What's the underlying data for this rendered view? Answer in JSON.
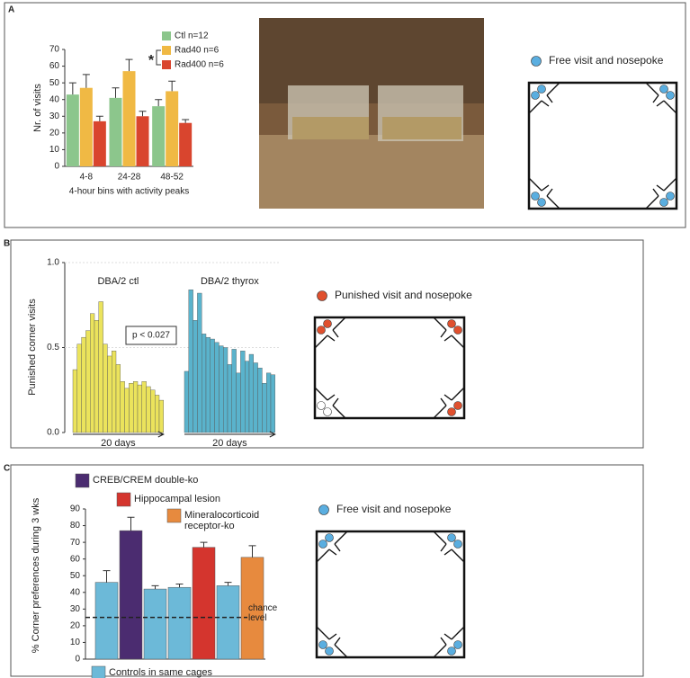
{
  "panels": [
    "A",
    "B",
    "C"
  ],
  "chart_data": [
    {
      "type": "bar",
      "ylabel": "Nr. of visits",
      "xlabel": "4-hour bins with activity peaks",
      "categories": [
        "4-8",
        "24-28",
        "48-52"
      ],
      "series": [
        {
          "name": "Ctl n=12",
          "color": "#8cc68c",
          "values": [
            43,
            41,
            36
          ],
          "errors": [
            7,
            6,
            4
          ]
        },
        {
          "name": "Rad40 n=6",
          "color": "#f0b944",
          "values": [
            47,
            57,
            45
          ],
          "errors": [
            8,
            7,
            6
          ]
        },
        {
          "name": "Rad400 n=6",
          "color": "#d9452e",
          "values": [
            27,
            30,
            26
          ],
          "errors": [
            3,
            3,
            2
          ]
        }
      ],
      "annotation": "*",
      "ylim": [
        0,
        70
      ],
      "yticks": [
        0,
        10,
        20,
        30,
        40,
        50,
        60,
        70
      ]
    },
    {
      "type": "histogram",
      "ylabel": "Punished corner visits",
      "annotation": "p < 0.027",
      "series": [
        {
          "name": "DBA/2 ctl",
          "color": "#ebe35c",
          "xlabel": "20 days",
          "values": [
            0.37,
            0.52,
            0.56,
            0.6,
            0.7,
            0.66,
            0.77,
            0.52,
            0.45,
            0.48,
            0.4,
            0.3,
            0.26,
            0.29,
            0.3,
            0.28,
            0.3,
            0.27,
            0.25,
            0.22,
            0.19
          ]
        },
        {
          "name": "DBA/2 thyrox",
          "color": "#5ab3cc",
          "xlabel": "20 days",
          "values": [
            0.36,
            0.84,
            0.66,
            0.82,
            0.58,
            0.56,
            0.55,
            0.53,
            0.51,
            0.5,
            0.4,
            0.49,
            0.35,
            0.48,
            0.42,
            0.46,
            0.41,
            0.38,
            0.29,
            0.35,
            0.34
          ]
        }
      ],
      "ylim": [
        0,
        1
      ],
      "yticks": [
        {
          "value": 0,
          "label": "0.0"
        },
        0.5,
        {
          "value": 1,
          "label": "1.0"
        }
      ],
      "grid": true
    },
    {
      "type": "bar",
      "ylabel": "% Corner preferences during 3 wks",
      "values": [
        46,
        77,
        42,
        43,
        67,
        44,
        61
      ],
      "errors": [
        7,
        8,
        2,
        2,
        3,
        2,
        7
      ],
      "colors": [
        "#6cb9d8",
        "#4b2c70",
        "#6cb9d8",
        "#6cb9d8",
        "#d4352e",
        "#6cb9d8",
        "#e78a3e"
      ],
      "legend": [
        {
          "label": "CREB/CREM double-ko",
          "color": "#4b2c70"
        },
        {
          "label": "Hippocampal lesion",
          "color": "#d4352e"
        },
        {
          "label": "Mineralocorticoid receptor-ko",
          "color": "#e78a3e"
        },
        {
          "label": "Controls in same cages",
          "color": "#6cb9d8"
        }
      ],
      "reference_line": {
        "value": 25,
        "label": "chance level"
      },
      "ylim": [
        0,
        90
      ],
      "yticks": [
        0,
        10,
        20,
        30,
        40,
        50,
        60,
        70,
        80,
        90
      ]
    }
  ],
  "diagrams": [
    {
      "title": "Free visit and nosepoke",
      "color": "#5aaee0"
    },
    {
      "title": "Punished visit and nosepoke",
      "color": "#e0502e"
    },
    {
      "title": "Free visit and nosepoke",
      "color": "#5aaee0"
    }
  ]
}
